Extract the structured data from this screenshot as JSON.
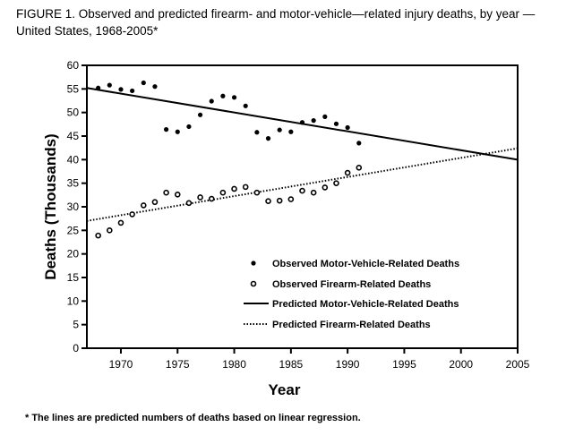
{
  "chart_data": {
    "type": "scatter",
    "title": "FIGURE 1. Observed and predicted firearm- and motor-vehicle—related injury deaths, by year — United States, 1968-2005*",
    "xlabel": "Year",
    "ylabel": "Deaths (Thousands)",
    "xlim": [
      1967,
      2005
    ],
    "ylim": [
      0,
      60
    ],
    "xticks": [
      1970,
      1975,
      1980,
      1985,
      1990,
      1995,
      2000,
      2005
    ],
    "yticks": [
      0,
      5,
      10,
      15,
      20,
      25,
      30,
      35,
      40,
      45,
      50,
      55,
      60
    ],
    "x": [
      1968,
      1969,
      1970,
      1971,
      1972,
      1973,
      1974,
      1975,
      1976,
      1977,
      1978,
      1979,
      1980,
      1981,
      1982,
      1983,
      1984,
      1985,
      1986,
      1987,
      1988,
      1989,
      1990,
      1991
    ],
    "series": [
      {
        "name": "Observed Motor-Vehicle-Related Deaths",
        "marker": "filled",
        "values": [
          55.2,
          55.8,
          54.9,
          54.6,
          56.3,
          55.5,
          46.4,
          45.9,
          47.0,
          49.5,
          52.4,
          53.5,
          53.2,
          51.4,
          45.8,
          44.5,
          46.3,
          45.9,
          47.9,
          48.3,
          49.1,
          47.6,
          46.8,
          43.5
        ]
      },
      {
        "name": "Observed Firearm-Related Deaths",
        "marker": "open",
        "values": [
          23.9,
          25.0,
          26.6,
          28.4,
          30.3,
          31.0,
          33.0,
          32.6,
          30.8,
          32.0,
          31.7,
          33.0,
          33.8,
          34.2,
          33.0,
          31.2,
          31.3,
          31.6,
          33.4,
          33.0,
          34.1,
          35.0,
          37.2,
          38.3
        ]
      },
      {
        "name": "Predicted Motor-Vehicle-Related Deaths",
        "line": "solid",
        "points": [
          [
            1967,
            55.2
          ],
          [
            2005,
            40.0
          ]
        ]
      },
      {
        "name": "Predicted Firearm-Related Deaths",
        "line": "dotted",
        "points": [
          [
            1967,
            27.0
          ],
          [
            2005,
            42.4
          ]
        ]
      }
    ],
    "legend": "center-right",
    "footnote": "* The lines are predicted numbers of deaths based on linear regression."
  }
}
